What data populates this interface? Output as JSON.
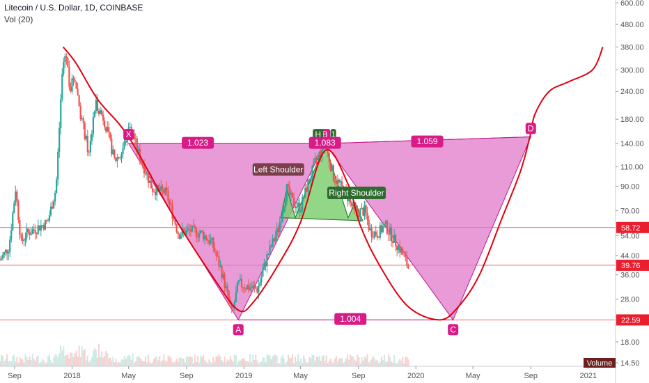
{
  "header": {
    "title": "Litecoin / U.S. Dollar, 1D, COINBASE",
    "volume_label": "Vol (20)"
  },
  "colors": {
    "pattern_fill": "#e07ac8",
    "pattern_edge": "#c2188f",
    "hs_fill": "#7fcf73",
    "hs_edge": "#2e7d32",
    "curve": "#e0000e",
    "hline": "#e85a5a",
    "candle_up": "#26a69a",
    "candle_down": "#ef5350",
    "label_magenta": "#d81b87",
    "label_dark": "#7b3f4b",
    "label_green": "#2e6b2f",
    "price_tag": "#e91e2f"
  },
  "chart_data": {
    "type": "candlestick",
    "symbol": "Litecoin / U.S. Dollar, 1D, COINBASE",
    "y_scale": "log",
    "ylim": [
      14.5,
      600
    ],
    "xlim": [
      "2017-08-01",
      "2021-02-28"
    ],
    "y_ticks": [
      "600.00",
      "480.00",
      "380.00",
      "300.00",
      "240.00",
      "180.00",
      "140.00",
      "110.00",
      "90.00",
      "70.00",
      "54.00",
      "44.00",
      "36.00",
      "28.00",
      "22.59",
      "18.00",
      "14.50"
    ],
    "x_ticks": [
      {
        "label": "Sep",
        "date": "2017-09-01"
      },
      {
        "label": "2018",
        "date": "2018-01-01"
      },
      {
        "label": "May",
        "date": "2018-05-01"
      },
      {
        "label": "Sep",
        "date": "2018-09-01"
      },
      {
        "label": "2019",
        "date": "2019-01-01"
      },
      {
        "label": "May",
        "date": "2019-05-01"
      },
      {
        "label": "Sep",
        "date": "2019-09-01"
      },
      {
        "label": "2020",
        "date": "2020-01-01"
      },
      {
        "label": "May",
        "date": "2020-05-01"
      },
      {
        "label": "Sep",
        "date": "2020-09-01"
      },
      {
        "label": "2021",
        "date": "2021-01-01"
      }
    ],
    "price_path": [
      [
        "2017-08-01",
        42
      ],
      [
        "2017-08-20",
        48
      ],
      [
        "2017-09-03",
        88
      ],
      [
        "2017-09-15",
        50
      ],
      [
        "2017-09-25",
        55
      ],
      [
        "2017-10-15",
        58
      ],
      [
        "2017-11-10",
        62
      ],
      [
        "2017-11-28",
        88
      ],
      [
        "2017-12-12",
        310
      ],
      [
        "2017-12-19",
        360
      ],
      [
        "2017-12-28",
        245
      ],
      [
        "2018-01-06",
        285
      ],
      [
        "2018-01-20",
        185
      ],
      [
        "2018-02-06",
        125
      ],
      [
        "2018-02-20",
        215
      ],
      [
        "2018-03-10",
        180
      ],
      [
        "2018-04-01",
        118
      ],
      [
        "2018-04-15",
        125
      ],
      [
        "2018-05-05",
        170
      ],
      [
        "2018-05-20",
        130
      ],
      [
        "2018-06-20",
        88
      ],
      [
        "2018-07-20",
        84
      ],
      [
        "2018-08-15",
        55
      ],
      [
        "2018-09-10",
        57
      ],
      [
        "2018-10-05",
        55
      ],
      [
        "2018-10-25",
        50
      ],
      [
        "2018-11-15",
        37
      ],
      [
        "2018-12-07",
        24
      ],
      [
        "2018-12-20",
        33
      ],
      [
        "2019-01-05",
        32
      ],
      [
        "2019-01-30",
        31
      ],
      [
        "2019-02-20",
        44
      ],
      [
        "2019-03-15",
        58
      ],
      [
        "2019-04-02",
        88
      ],
      [
        "2019-04-15",
        76
      ],
      [
        "2019-05-01",
        72
      ],
      [
        "2019-05-15",
        90
      ],
      [
        "2019-06-01",
        115
      ],
      [
        "2019-06-22",
        140
      ],
      [
        "2019-07-10",
        100
      ],
      [
        "2019-07-25",
        90
      ],
      [
        "2019-08-10",
        80
      ],
      [
        "2019-08-25",
        68
      ],
      [
        "2019-09-15",
        70
      ],
      [
        "2019-09-25",
        57
      ],
      [
        "2019-10-10",
        55
      ],
      [
        "2019-10-28",
        60
      ],
      [
        "2019-11-15",
        52
      ],
      [
        "2019-12-01",
        46
      ],
      [
        "2019-12-18",
        38
      ]
    ],
    "points": [
      {
        "label": "X",
        "date": "2018-05-01",
        "value": 140
      },
      {
        "label": "A",
        "date": "2018-12-20",
        "value": 22.59
      },
      {
        "label": "B",
        "date": "2019-06-22",
        "value": 140
      },
      {
        "label": "C",
        "date": "2020-03-20",
        "value": 22.59
      },
      {
        "label": "D",
        "date": "2020-09-01",
        "value": 150
      }
    ],
    "ratios": [
      {
        "label": "1.023",
        "date": "2018-09-25",
        "value": 141
      },
      {
        "label": "1.083",
        "date": "2019-06-22",
        "value": 141
      },
      {
        "label": "1.059",
        "date": "2020-01-25",
        "value": 143
      },
      {
        "label": "1.004",
        "date": "2019-08-15",
        "value": 22.8
      }
    ],
    "head_and_shoulders": {
      "labels": [
        "Left Shoulder",
        "H",
        "Right Shoulder"
      ],
      "points": [
        {
          "date": "2019-03-20",
          "value": 65
        },
        {
          "date": "2019-04-02",
          "value": 88
        },
        {
          "date": "2019-04-20",
          "value": 65
        },
        {
          "date": "2019-06-22",
          "value": 140
        },
        {
          "date": "2019-08-10",
          "value": 65
        },
        {
          "date": "2019-08-25",
          "value": 76
        },
        {
          "date": "2019-09-10",
          "value": 63
        }
      ]
    },
    "horizontal_levels": [
      58.72,
      39.76,
      22.59
    ],
    "price_tags": [
      "58.72",
      "39.76",
      "22.59"
    ],
    "projection_curve": [
      [
        "2017-12-13",
        380
      ],
      [
        "2018-01-10",
        320
      ],
      [
        "2018-02-25",
        220
      ],
      [
        "2018-05-01",
        150
      ],
      [
        "2018-08-01",
        68
      ],
      [
        "2018-11-01",
        34
      ],
      [
        "2018-12-20",
        25
      ],
      [
        "2019-01-20",
        27
      ],
      [
        "2019-03-15",
        40
      ],
      [
        "2019-05-01",
        62
      ],
      [
        "2019-06-22",
        130
      ],
      [
        "2019-08-10",
        92
      ],
      [
        "2019-09-05",
        60
      ],
      [
        "2019-10-15",
        40
      ],
      [
        "2019-12-15",
        26
      ],
      [
        "2020-02-20",
        22.6
      ],
      [
        "2020-04-01",
        26
      ],
      [
        "2020-05-15",
        36
      ],
      [
        "2020-07-01",
        64
      ],
      [
        "2020-08-10",
        105
      ],
      [
        "2020-08-30",
        150
      ],
      [
        "2020-09-10",
        190
      ],
      [
        "2020-10-10",
        240
      ],
      [
        "2020-11-20",
        265
      ],
      [
        "2021-01-10",
        300
      ],
      [
        "2021-02-01",
        380
      ]
    ],
    "volume_badge": "Volume"
  }
}
